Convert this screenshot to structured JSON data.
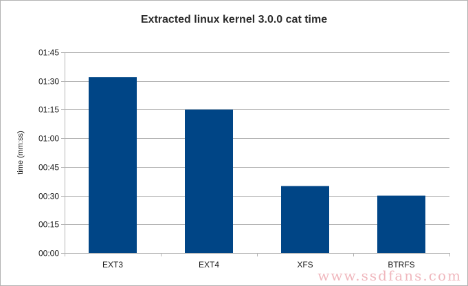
{
  "chart_data": {
    "type": "bar",
    "title": "Extracted linux kernel 3.0.0 cat time",
    "xlabel": "",
    "ylabel": "time (mm:ss)",
    "categories": [
      "EXT3",
      "EXT4",
      "XFS",
      "BTRFS"
    ],
    "values": [
      92,
      75,
      35,
      30
    ],
    "value_unit": "seconds",
    "ylim": [
      0,
      105
    ],
    "yticks": [
      0,
      15,
      30,
      45,
      60,
      75,
      90,
      105
    ],
    "ytick_labels": [
      "00:00",
      "00:15",
      "00:30",
      "00:45",
      "01:00",
      "01:15",
      "01:30",
      "01:45"
    ],
    "grid": true,
    "legend": "none",
    "bar_color": "#004586"
  },
  "watermark": "www.ssdfans.com",
  "colors": {
    "grid": "#b3b3b3",
    "axis": "#b3b3b3",
    "watermark": "#f0b8be"
  }
}
